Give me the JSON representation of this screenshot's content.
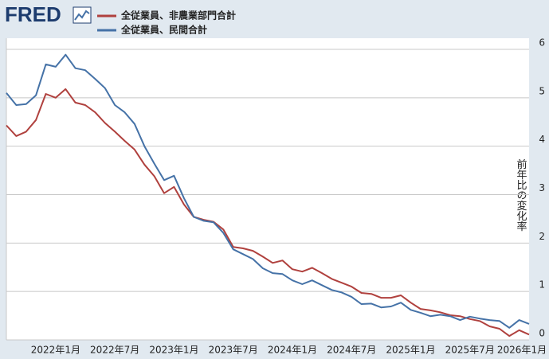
{
  "logo": "FRED",
  "chart_data": {
    "type": "line",
    "y_label": "前年比の変化率",
    "categories": [
      null,
      null,
      null,
      null,
      null,
      "2022年1月",
      null,
      null,
      null,
      null,
      null,
      "2022年7月",
      null,
      null,
      null,
      null,
      null,
      "2023年1月",
      null,
      null,
      null,
      null,
      null,
      "2023年7月",
      null,
      null,
      null,
      null,
      null,
      "2024年1月",
      null,
      null,
      null,
      null,
      null,
      "2024年7月",
      null,
      null,
      null,
      null,
      null,
      "2025年1月",
      null,
      null,
      null,
      null,
      null,
      "2025年7月",
      null,
      null,
      null,
      null,
      null,
      "2026年1月"
    ],
    "series": [
      {
        "name": "全従業員、非農業部門合計",
        "color": "#b0413e",
        "values": [
          4.43,
          4.21,
          4.3,
          4.54,
          5.08,
          5.0,
          5.18,
          4.9,
          4.85,
          4.7,
          4.48,
          4.3,
          4.11,
          3.93,
          3.62,
          3.38,
          3.03,
          3.16,
          2.8,
          2.54,
          2.48,
          2.44,
          2.28,
          1.92,
          1.89,
          1.84,
          1.72,
          1.59,
          1.64,
          1.46,
          1.41,
          1.49,
          1.38,
          1.26,
          1.18,
          1.1,
          0.97,
          0.95,
          0.87,
          0.87,
          0.92,
          0.77,
          0.64,
          0.61,
          0.57,
          0.51,
          0.49,
          0.43,
          0.39,
          0.28,
          0.23,
          0.08,
          0.2,
          0.11
        ]
      },
      {
        "name": "全従業員、民間合計",
        "color": "#4572a7",
        "values": [
          5.1,
          4.85,
          4.87,
          5.05,
          5.69,
          5.64,
          5.89,
          5.61,
          5.57,
          5.39,
          5.2,
          4.85,
          4.7,
          4.46,
          4.0,
          3.64,
          3.3,
          3.39,
          2.93,
          2.54,
          2.46,
          2.43,
          2.21,
          1.87,
          1.77,
          1.67,
          1.48,
          1.38,
          1.36,
          1.23,
          1.15,
          1.23,
          1.13,
          1.03,
          0.98,
          0.89,
          0.74,
          0.75,
          0.67,
          0.69,
          0.77,
          0.62,
          0.56,
          0.49,
          0.52,
          0.49,
          0.41,
          0.48,
          0.44,
          0.41,
          0.39,
          0.25,
          0.41,
          0.33
        ]
      }
    ],
    "ylim": [
      0,
      6
    ],
    "yticks": [
      0,
      1,
      2,
      3,
      4,
      5,
      6
    ],
    "grid": true
  }
}
